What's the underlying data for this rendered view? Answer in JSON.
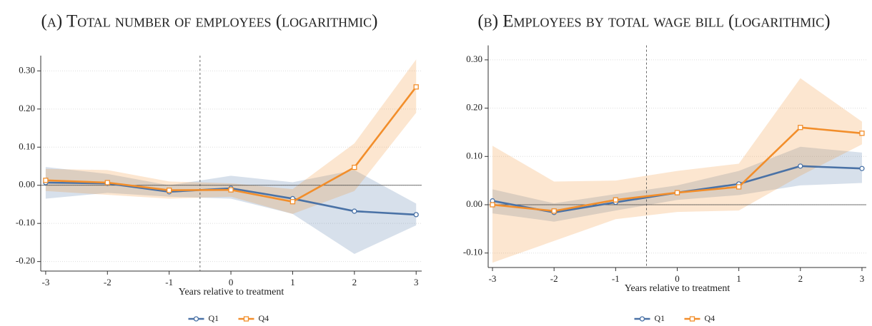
{
  "chart_data": [
    {
      "type": "line",
      "title": "(a) Total number of employees (logarithmic)",
      "xlabel": "Years relative to treatment",
      "x": [
        -3,
        -2,
        -1,
        0,
        1,
        2,
        3
      ],
      "xlim": [
        -3.08,
        3.09
      ],
      "xticks": [
        -3,
        -2,
        -1,
        0,
        1,
        2,
        3
      ],
      "ylim": [
        -0.225,
        0.34
      ],
      "yticks": [
        {
          "value": -0.2,
          "label": "-0.20"
        },
        {
          "value": -0.1,
          "label": "-0.10"
        },
        {
          "value": 0,
          "label": "0.00"
        },
        {
          "value": 0.1,
          "label": "0.10"
        },
        {
          "value": 0.2,
          "label": "0.20"
        },
        {
          "value": 0.3,
          "label": "0.30"
        }
      ],
      "grid": true,
      "vline": -0.5,
      "hline": 0,
      "legend": "bottom",
      "series": [
        {
          "name": "Q1",
          "color": "#4a72a6",
          "marker": "circle",
          "values": [
            0.007,
            0.005,
            -0.017,
            -0.008,
            -0.035,
            -0.068,
            -0.077
          ],
          "lower": [
            -0.035,
            -0.02,
            -0.03,
            -0.035,
            -0.075,
            -0.18,
            -0.105
          ],
          "upper": [
            0.048,
            0.03,
            0.0,
            0.025,
            0.008,
            0.04,
            -0.048
          ]
        },
        {
          "name": "Q4",
          "color": "#f28e2b",
          "marker": "square",
          "values": [
            0.013,
            0.007,
            -0.013,
            -0.012,
            -0.043,
            0.047,
            0.258
          ],
          "lower": [
            -0.015,
            -0.025,
            -0.035,
            -0.03,
            -0.075,
            -0.015,
            0.19
          ],
          "upper": [
            0.043,
            0.04,
            0.01,
            0.005,
            -0.01,
            0.11,
            0.33
          ]
        }
      ]
    },
    {
      "type": "line",
      "title": "(b) Employees by total wage bill (logarithmic)",
      "xlabel": "Years relative to treatment",
      "x": [
        -3,
        -2,
        -1,
        0,
        1,
        2,
        3
      ],
      "xlim": [
        -3.07,
        3.07
      ],
      "xticks": [
        -3,
        -2,
        -1,
        0,
        1,
        2,
        3
      ],
      "ylim": [
        -0.13,
        0.33
      ],
      "yticks": [
        {
          "value": -0.1,
          "label": "-0.10"
        },
        {
          "value": 0,
          "label": "0.00"
        },
        {
          "value": 0.1,
          "label": "0.10"
        },
        {
          "value": 0.2,
          "label": "0.20"
        },
        {
          "value": 0.3,
          "label": "0.30"
        }
      ],
      "grid": true,
      "vline": -0.5,
      "hline": 0,
      "legend": "bottom",
      "series": [
        {
          "name": "Q1",
          "color": "#4a72a6",
          "marker": "circle",
          "values": [
            0.008,
            -0.016,
            0.005,
            0.025,
            0.043,
            0.08,
            0.075
          ],
          "lower": [
            -0.018,
            -0.035,
            -0.012,
            0.01,
            0.02,
            0.04,
            0.045
          ],
          "upper": [
            0.032,
            0.003,
            0.022,
            0.04,
            0.07,
            0.12,
            0.108
          ]
        },
        {
          "name": "Q4",
          "color": "#f28e2b",
          "marker": "square",
          "values": [
            0.0,
            -0.013,
            0.01,
            0.025,
            0.037,
            0.16,
            0.148
          ],
          "lower": [
            -0.12,
            -0.075,
            -0.03,
            -0.015,
            -0.012,
            0.06,
            0.125
          ],
          "upper": [
            0.122,
            0.048,
            0.05,
            0.07,
            0.085,
            0.262,
            0.172
          ]
        }
      ]
    }
  ]
}
